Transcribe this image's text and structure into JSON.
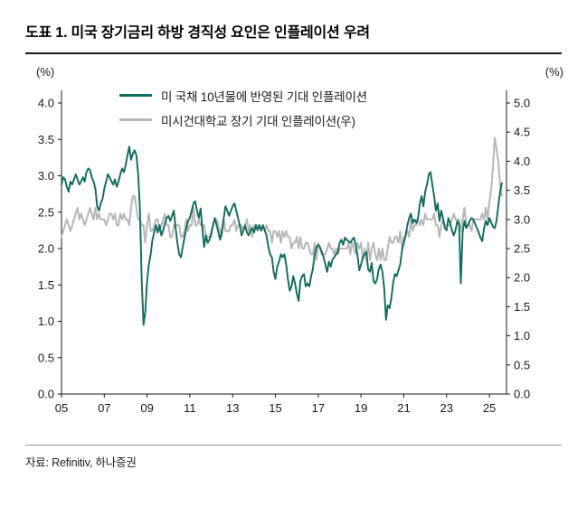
{
  "header": {
    "title": "도표 1. 미국 장기금리 하방 경직성 요인은 인플레이션 우려"
  },
  "footer": {
    "source": "자료: Refinitiv, 하나증권"
  },
  "chart_data": {
    "type": "line",
    "title": "도표 1. 미국 장기금리 하방 경직성 요인은 인플레이션 우려",
    "grid": false,
    "legend_position": "top-inside",
    "x_start_year": 2005,
    "x_points_per_year": 12,
    "x_range": [
      2005,
      2025.8
    ],
    "x_tick_labels": [
      "05",
      "07",
      "09",
      "11",
      "13",
      "15",
      "17",
      "19",
      "21",
      "23",
      "25"
    ],
    "x_tick_years": [
      2005,
      2007,
      2009,
      2011,
      2013,
      2015,
      2017,
      2019,
      2021,
      2023,
      2025
    ],
    "left_axis": {
      "label": "(%)",
      "range": [
        0,
        4
      ],
      "tick_labels": [
        "4.0",
        "3.5",
        "3.0",
        "2.5",
        "2.0",
        "1.5",
        "1.0",
        "0.5",
        "0.0"
      ]
    },
    "right_axis": {
      "label": "(%)",
      "range": [
        0,
        5
      ],
      "tick_labels": [
        "5.0",
        "4.5",
        "4.0",
        "3.5",
        "3.0",
        "2.5",
        "2.0",
        "1.5",
        "1.0",
        "0.5",
        "0.0"
      ]
    },
    "series": [
      {
        "name": "미 국채 10년물에 반영된 기대 인플레이션",
        "axis": "left",
        "color": "#0e6b5d",
        "stroke_width": 1.9,
        "values": [
          2.88,
          2.98,
          2.95,
          2.85,
          2.78,
          2.92,
          2.88,
          2.95,
          3.02,
          2.95,
          2.88,
          2.92,
          2.98,
          2.92,
          3.05,
          3.1,
          3.08,
          2.98,
          2.92,
          2.82,
          2.58,
          2.52,
          2.62,
          2.68,
          2.82,
          2.92,
          3.02,
          2.98,
          2.92,
          2.88,
          2.95,
          2.85,
          2.92,
          3.02,
          3.1,
          3.05,
          3.15,
          3.28,
          3.4,
          3.22,
          3.3,
          3.35,
          3.28,
          3.02,
          2.55,
          1.55,
          0.95,
          1.12,
          1.55,
          1.78,
          1.92,
          2.12,
          2.22,
          2.32,
          2.22,
          2.32,
          2.18,
          2.25,
          2.35,
          2.42,
          2.45,
          2.38,
          2.45,
          2.52,
          2.28,
          2.08,
          1.92,
          1.88,
          2.02,
          2.15,
          2.28,
          2.38,
          2.42,
          2.52,
          2.62,
          2.65,
          2.52,
          2.42,
          2.55,
          2.28,
          2.02,
          2.18,
          2.08,
          2.12,
          2.22,
          2.32,
          2.42,
          2.32,
          2.22,
          2.12,
          2.25,
          2.42,
          2.58,
          2.52,
          2.45,
          2.52,
          2.58,
          2.62,
          2.52,
          2.42,
          2.32,
          2.18,
          2.25,
          2.32,
          2.22,
          2.18,
          2.25,
          2.28,
          2.22,
          2.32,
          2.25,
          2.32,
          2.25,
          2.32,
          2.25,
          2.18,
          2.02,
          1.92,
          1.88,
          1.68,
          1.58,
          1.75,
          1.82,
          1.92,
          1.88,
          1.92,
          1.78,
          1.58,
          1.42,
          1.48,
          1.62,
          1.52,
          1.38,
          1.28,
          1.55,
          1.62,
          1.65,
          1.48,
          1.52,
          1.48,
          1.62,
          1.72,
          1.92,
          2.02,
          2.05,
          2.02,
          1.95,
          1.88,
          1.78,
          1.68,
          1.82,
          1.75,
          1.85,
          1.88,
          1.92,
          1.95,
          2.08,
          2.12,
          2.05,
          2.15,
          2.12,
          2.1,
          2.08,
          2.12,
          2.15,
          2.05,
          1.92,
          1.7,
          1.78,
          1.88,
          1.92,
          1.95,
          1.72,
          1.68,
          1.8,
          1.55,
          1.52,
          1.58,
          1.72,
          1.78,
          1.68,
          1.45,
          1.02,
          1.22,
          1.18,
          1.32,
          1.52,
          1.65,
          1.62,
          1.7,
          1.78,
          1.98,
          2.08,
          2.18,
          2.32,
          2.42,
          2.48,
          2.35,
          2.4,
          2.35,
          2.42,
          2.62,
          2.72,
          2.58,
          2.78,
          2.88,
          3.02,
          3.05,
          2.88,
          2.72,
          2.52,
          2.62,
          2.38,
          2.52,
          2.42,
          2.28,
          2.25,
          2.42,
          2.35,
          2.25,
          2.18,
          2.25,
          2.38,
          2.32,
          1.52,
          2.22,
          2.38,
          2.28,
          2.32,
          2.38,
          2.42,
          2.4,
          2.34,
          2.28,
          2.22,
          2.15,
          2.1,
          2.28,
          2.38,
          2.32,
          2.42,
          2.36,
          2.3,
          2.28,
          2.38,
          2.58,
          2.78,
          2.9
        ]
      },
      {
        "name": "미시건대학교 장기 기대 인플레이션(우)",
        "axis": "right",
        "color": "#b7b7b7",
        "stroke_width": 2,
        "values": [
          2.7,
          2.8,
          2.9,
          3.0,
          2.9,
          2.8,
          2.9,
          3.0,
          3.1,
          3.2,
          3.0,
          3.1,
          3.0,
          2.9,
          3.0,
          3.1,
          3.2,
          3.1,
          3.0,
          3.2,
          3.0,
          3.1,
          3.0,
          3.0,
          3.0,
          2.9,
          3.0,
          3.1,
          3.1,
          3.0,
          3.1,
          2.9,
          2.9,
          3.1,
          3.0,
          3.1,
          3.0,
          3.0,
          2.9,
          3.2,
          3.4,
          3.4,
          3.2,
          3.0,
          3.0,
          2.9,
          2.9,
          2.6,
          2.9,
          3.1,
          2.8,
          2.8,
          2.9,
          3.0,
          3.0,
          2.8,
          2.9,
          3.0,
          3.1,
          2.9,
          2.9,
          2.7,
          2.7,
          2.9,
          2.9,
          2.9,
          2.9,
          2.7,
          2.7,
          2.8,
          3.0,
          2.8,
          2.9,
          2.9,
          3.2,
          2.9,
          2.9,
          3.0,
          2.9,
          2.9,
          2.9,
          2.7,
          2.7,
          2.7,
          2.7,
          2.9,
          3.0,
          3.0,
          2.9,
          2.8,
          2.7,
          3.0,
          2.8,
          2.8,
          2.8,
          2.9,
          2.9,
          3.0,
          2.8,
          2.9,
          2.9,
          2.9,
          2.8,
          2.9,
          3.0,
          2.8,
          2.9,
          2.7,
          2.9,
          2.9,
          2.9,
          2.9,
          2.8,
          2.9,
          2.8,
          2.9,
          2.8,
          2.8,
          2.6,
          2.8,
          2.8,
          2.7,
          2.8,
          2.6,
          2.8,
          2.7,
          2.8,
          2.7,
          2.7,
          2.5,
          2.6,
          2.6,
          2.7,
          2.5,
          2.7,
          2.5,
          2.5,
          2.6,
          2.6,
          2.5,
          2.4,
          2.4,
          2.6,
          2.3,
          2.6,
          2.5,
          2.4,
          2.4,
          2.4,
          2.5,
          2.6,
          2.5,
          2.5,
          2.4,
          2.5,
          2.4,
          2.5,
          2.5,
          2.5,
          2.5,
          2.5,
          2.6,
          2.4,
          2.6,
          2.5,
          2.4,
          2.6,
          2.5,
          2.6,
          2.3,
          2.5,
          2.3,
          2.6,
          2.3,
          2.5,
          2.6,
          2.4,
          2.3,
          2.5,
          2.3,
          2.5,
          2.3,
          2.3,
          2.5,
          2.7,
          2.6,
          2.6,
          2.7,
          2.7,
          2.6,
          2.8,
          2.5,
          2.7,
          2.7,
          2.8,
          2.7,
          3.0,
          2.8,
          2.9,
          2.9,
          3.0,
          2.9,
          3.0,
          2.9,
          3.1,
          3.0,
          3.0,
          3.0,
          3.0,
          3.1,
          2.9,
          2.9,
          2.7,
          2.9,
          3.0,
          2.9,
          2.9,
          2.9,
          2.9,
          3.0,
          3.1,
          3.0,
          3.0,
          3.0,
          2.8,
          3.0,
          3.2,
          2.9,
          2.9,
          2.9,
          2.8,
          3.0,
          3.0,
          3.0,
          3.0,
          3.0,
          3.1,
          3.0,
          3.2,
          3.0,
          3.3,
          3.5,
          3.9,
          4.4,
          4.2,
          4.0,
          3.6,
          3.4
        ]
      }
    ]
  }
}
